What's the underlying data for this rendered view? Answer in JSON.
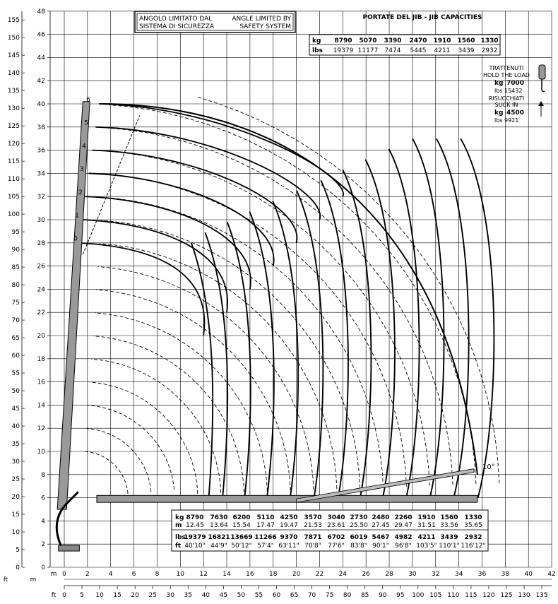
{
  "scale": {
    "y_ft_labels": [
      "0",
      "5",
      "10",
      "15",
      "20",
      "25",
      "30",
      "35",
      "40",
      "45",
      "50",
      "55",
      "60",
      "65",
      "70",
      "75",
      "80",
      "85",
      "90",
      "95",
      "100",
      "105",
      "110",
      "115",
      "120",
      "125",
      "130",
      "135",
      "140",
      "145",
      "150",
      "155"
    ],
    "y_m_labels": [
      "0",
      "2",
      "4",
      "6",
      "8",
      "10",
      "12",
      "14",
      "16",
      "18",
      "20",
      "22",
      "24",
      "26",
      "28",
      "30",
      "32",
      "34",
      "36",
      "38",
      "40",
      "42",
      "44",
      "46",
      "48"
    ],
    "x_m_labels": [
      "0",
      "2",
      "4",
      "6",
      "8",
      "10",
      "12",
      "14",
      "16",
      "18",
      "20",
      "22",
      "24",
      "26",
      "28",
      "30",
      "32",
      "34",
      "36",
      "38",
      "40",
      "42"
    ],
    "x_ft_labels": [
      "0",
      "5",
      "10",
      "15",
      "20",
      "25",
      "30",
      "35",
      "40",
      "45",
      "50",
      "55",
      "60",
      "65",
      "70",
      "75",
      "80",
      "85",
      "90",
      "95",
      "100",
      "105",
      "110",
      "115",
      "120",
      "125",
      "130",
      "135"
    ],
    "unit_ft": "ft",
    "unit_m": "m",
    "axis_m_label": "m",
    "axis_ft_label": "ft"
  },
  "notice": {
    "it_line1": "ANGOLO LIMITATO DAL",
    "it_line2": "SISTEMA DI SICUREZZA",
    "en_line1": "ANGLE LIMITED BY",
    "en_line2": "SAFETY SYSTEM"
  },
  "jib": {
    "title": "PORTATE DEL JIB  -  JIB CAPACITIES",
    "kg_label": "kg",
    "lbs_label": "lbs",
    "kg": [
      "8790",
      "5070",
      "3390",
      "2470",
      "1910",
      "1560",
      "1330"
    ],
    "lbs": [
      "19379",
      "11177",
      "7474",
      "5445",
      "4211",
      "3439",
      "2932"
    ]
  },
  "winch": {
    "hold_line1": "TRATTENUTI",
    "hold_line2": "HOLD THE LOAD",
    "hold_kg_label": "kg",
    "hold_kg": "7000",
    "hold_lbs_label": "lbs",
    "hold_lbs": "15432",
    "suck_line1": "RISUCCHIATI",
    "suck_line2": "SUCK IN",
    "suck_kg_label": "kg",
    "suck_kg": "4500",
    "suck_lbs_label": "lbs",
    "suck_lbs": "9921"
  },
  "boom_positions": [
    "0",
    "1",
    "2",
    "3",
    "4",
    "5",
    "6"
  ],
  "jib_angle": "10°",
  "capacity": {
    "kg_label": "kg",
    "m_label": "m",
    "lbs_label": "lbs",
    "ft_label": "ft",
    "kg": [
      "8790",
      "7630",
      "6200",
      "5110",
      "4250",
      "3570",
      "3040",
      "2730",
      "2480",
      "2260",
      "1910",
      "1560",
      "1330"
    ],
    "m": [
      "12.45",
      "13.64",
      "15.54",
      "17.47",
      "19.47",
      "21.53",
      "23.61",
      "25.50",
      "27.45",
      "29.47",
      "31.51",
      "33.56",
      "35.65"
    ],
    "lbs": [
      "19379",
      "16821",
      "13669",
      "11266",
      "9370",
      "7871",
      "6702",
      "6019",
      "5467",
      "4982",
      "4211",
      "3439",
      "2932"
    ],
    "ft": [
      "40'10\"",
      "44'9\"",
      "50'12\"",
      "57'4\"",
      "63'11\"",
      "70'8\"",
      "77'6\"",
      "83'8\"",
      "90'1\"",
      "96'8\"",
      "103'5\"",
      "110'1\"",
      "116'12\""
    ]
  },
  "chart_data": {
    "type": "diagram",
    "x_unit": "m",
    "y_unit": "m",
    "xlim": [
      0,
      42
    ],
    "ylim": [
      0,
      48
    ],
    "grid": true,
    "outreach_m": [
      12.45,
      13.64,
      15.54,
      17.47,
      19.47,
      21.53,
      23.61,
      25.5,
      27.45,
      29.47,
      31.51,
      33.56,
      35.65
    ],
    "boom_tip_heights_m": [
      28,
      30,
      32,
      34,
      36,
      38,
      40
    ]
  }
}
